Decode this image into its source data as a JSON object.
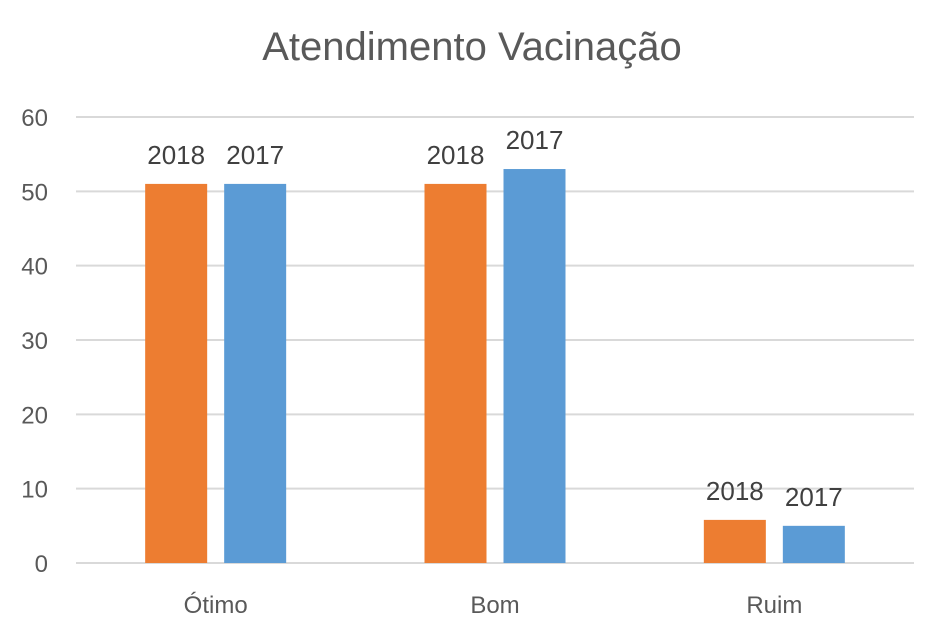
{
  "chart_data": {
    "type": "bar",
    "title": "Atendimento Vacinação",
    "xlabel": "",
    "ylabel": "",
    "categories": [
      "Ótimo",
      "Bom",
      "Ruim"
    ],
    "ylim": [
      0,
      60
    ],
    "yticks": [
      "0",
      "10",
      "20",
      "30",
      "40",
      "50",
      "60"
    ],
    "grid": true,
    "legend": "none",
    "series": [
      {
        "name": "2018",
        "values": [
          51,
          51,
          5.8
        ],
        "color": "#ED7D31"
      },
      {
        "name": "2017",
        "values": [
          51,
          53,
          5
        ],
        "color": "#5B9BD5"
      }
    ]
  }
}
